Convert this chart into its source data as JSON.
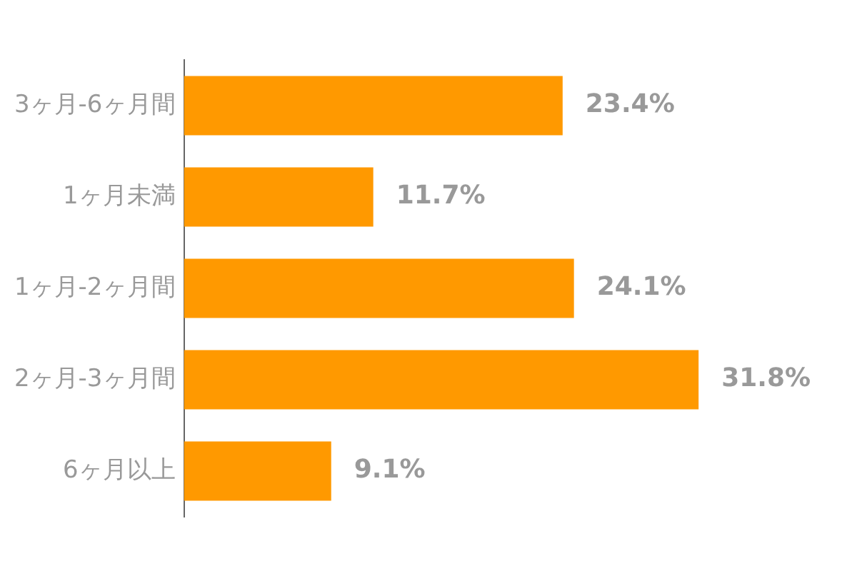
{
  "chart_data": {
    "type": "bar",
    "orientation": "horizontal",
    "categories": [
      "3ヶ月-6ヶ月間",
      "1ヶ月未満",
      "1ヶ月-2ヶ月間",
      "2ヶ月-3ヶ月間",
      "6ヶ月以上"
    ],
    "values": [
      23.4,
      11.7,
      24.1,
      31.8,
      9.1
    ],
    "color": "#ff9900",
    "value_labels": [
      "23.4%",
      "11.7%",
      "24.1%",
      "31.8%",
      "9.1%"
    ],
    "tick_labels": "y",
    "legend": false
  }
}
